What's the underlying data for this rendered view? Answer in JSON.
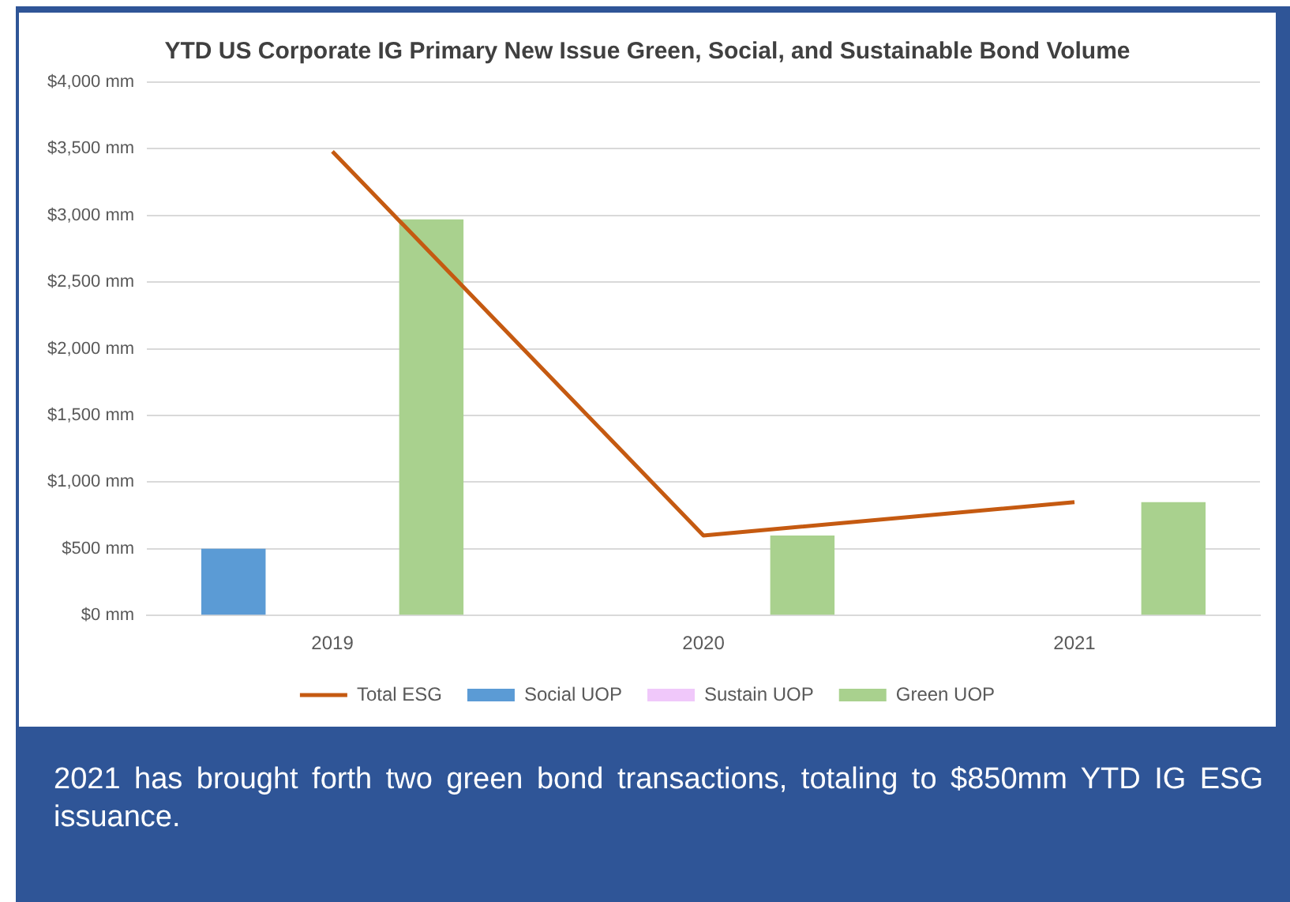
{
  "chart_data": {
    "type": "bar",
    "title": "YTD US Corporate IG Primary New Issue Green, Social, and Sustainable Bond Volume",
    "categories": [
      "2019",
      "2020",
      "2021"
    ],
    "series": [
      {
        "name": "Social UOP",
        "color": "#5b9bd5",
        "values": [
          500,
          null,
          null
        ]
      },
      {
        "name": "Sustain UOP",
        "color": "#f0c8fa",
        "values": [
          null,
          null,
          null
        ]
      },
      {
        "name": "Green UOP",
        "color": "#a9d18e",
        "values": [
          2970,
          600,
          850
        ]
      },
      {
        "name": "Total ESG",
        "type": "line",
        "color": "#c55a11",
        "values": [
          3480,
          600,
          850
        ]
      }
    ],
    "ylim": [
      0,
      4000
    ],
    "yticks": [
      {
        "value": 0,
        "label": "$0 mm"
      },
      {
        "value": 500,
        "label": "$500 mm"
      },
      {
        "value": 1000,
        "label": "$1,000 mm"
      },
      {
        "value": 1500,
        "label": "$1,500 mm"
      },
      {
        "value": 2000,
        "label": "$2,000 mm"
      },
      {
        "value": 2500,
        "label": "$2,500 mm"
      },
      {
        "value": 3000,
        "label": "$3,000 mm"
      },
      {
        "value": 3500,
        "label": "$3,500 mm"
      },
      {
        "value": 4000,
        "label": "$4,000 mm"
      }
    ],
    "grid": "y",
    "legend": "bottom",
    "marker": "none",
    "line_style": "solid",
    "annotations": [
      "2021 has brought forth two green bond transactions, totaling to $850mm YTD IG ESG issuance."
    ]
  }
}
